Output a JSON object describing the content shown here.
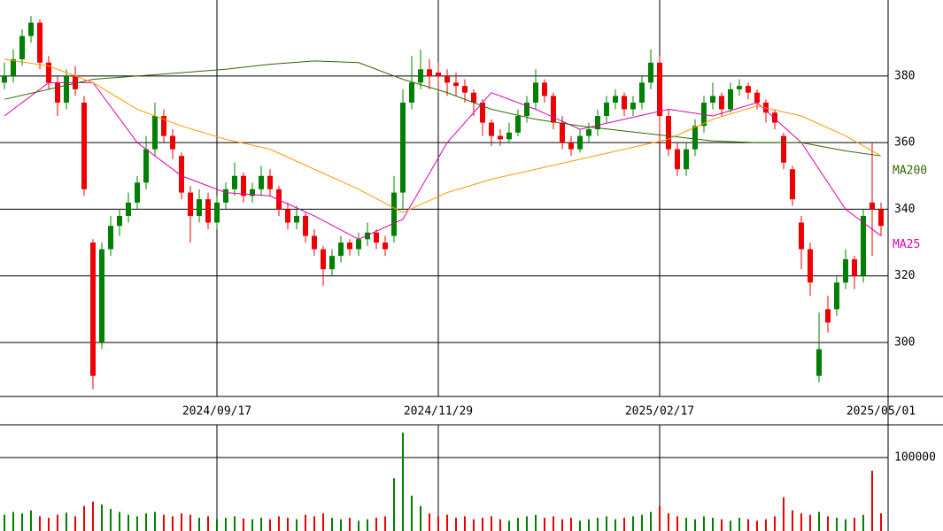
{
  "chart_data": {
    "type": "candlestick",
    "categories": [
      null,
      null,
      null,
      null,
      null,
      null,
      null,
      null,
      null,
      null,
      null,
      null,
      null,
      null,
      null,
      null,
      null,
      null,
      null,
      null,
      null,
      null,
      null,
      null,
      "2024/09/17",
      null,
      null,
      null,
      null,
      null,
      null,
      null,
      null,
      null,
      null,
      null,
      null,
      null,
      null,
      null,
      null,
      null,
      null,
      null,
      null,
      null,
      null,
      null,
      null,
      "2024/11/29",
      null,
      null,
      null,
      null,
      null,
      null,
      null,
      null,
      null,
      null,
      null,
      null,
      null,
      null,
      null,
      null,
      null,
      null,
      null,
      null,
      null,
      null,
      null,
      null,
      "2025/02/17",
      null,
      null,
      null,
      null,
      null,
      null,
      null,
      null,
      null,
      null,
      null,
      null,
      null,
      null,
      null,
      null,
      null,
      null,
      null,
      null,
      null,
      null,
      null,
      null,
      "2025/05/01"
    ],
    "ohlc": [
      [
        378,
        384,
        376,
        380
      ],
      [
        380,
        388,
        378,
        385
      ],
      [
        385,
        394,
        383,
        392
      ],
      [
        392,
        398,
        390,
        396
      ],
      [
        396,
        397,
        382,
        384
      ],
      [
        384,
        386,
        376,
        378
      ],
      [
        378,
        380,
        368,
        372
      ],
      [
        372,
        382,
        370,
        380
      ],
      [
        380,
        383,
        374,
        376
      ],
      [
        372,
        374,
        344,
        346
      ],
      [
        330,
        331,
        286,
        290
      ],
      [
        300,
        330,
        298,
        328
      ],
      [
        328,
        338,
        326,
        335
      ],
      [
        335,
        340,
        332,
        338
      ],
      [
        338,
        345,
        336,
        342
      ],
      [
        342,
        350,
        340,
        348
      ],
      [
        348,
        362,
        346,
        358
      ],
      [
        358,
        372,
        356,
        368
      ],
      [
        368,
        370,
        360,
        362
      ],
      [
        362,
        364,
        355,
        358
      ],
      [
        356,
        357,
        343,
        345
      ],
      [
        345,
        347,
        330,
        338
      ],
      [
        338,
        346,
        336,
        343
      ],
      [
        343,
        345,
        334,
        336
      ],
      [
        336,
        344,
        334,
        342
      ],
      [
        342,
        348,
        340,
        346
      ],
      [
        346,
        354,
        344,
        350
      ],
      [
        350,
        351,
        342,
        344
      ],
      [
        344,
        348,
        342,
        346
      ],
      [
        346,
        353,
        344,
        350
      ],
      [
        350,
        352,
        344,
        346
      ],
      [
        346,
        347,
        338,
        340
      ],
      [
        340,
        342,
        334,
        336
      ],
      [
        336,
        341,
        334,
        338
      ],
      [
        338,
        339,
        330,
        332
      ],
      [
        332,
        334,
        326,
        328
      ],
      [
        328,
        329,
        317,
        322
      ],
      [
        322,
        328,
        320,
        326
      ],
      [
        326,
        332,
        324,
        330
      ],
      [
        330,
        331,
        326,
        328
      ],
      [
        328,
        333,
        326,
        331
      ],
      [
        331,
        336,
        329,
        333
      ],
      [
        333,
        334,
        328,
        330
      ],
      [
        330,
        332,
        326,
        328
      ],
      [
        332,
        350,
        330,
        345
      ],
      [
        345,
        376,
        340,
        372
      ],
      [
        372,
        386,
        370,
        378
      ],
      [
        378,
        388,
        376,
        382
      ],
      [
        382,
        385,
        376,
        380
      ],
      [
        381,
        384,
        375,
        380
      ],
      [
        380,
        382,
        374,
        378
      ],
      [
        378,
        381,
        374,
        377
      ],
      [
        377,
        379,
        372,
        375
      ],
      [
        375,
        376,
        368,
        372
      ],
      [
        372,
        373,
        362,
        366
      ],
      [
        366,
        367,
        359,
        362
      ],
      [
        362,
        364,
        359,
        361
      ],
      [
        361,
        366,
        360,
        363
      ],
      [
        363,
        370,
        362,
        368
      ],
      [
        368,
        374,
        366,
        372
      ],
      [
        372,
        382,
        370,
        378
      ],
      [
        378,
        379,
        372,
        374
      ],
      [
        374,
        375,
        364,
        366
      ],
      [
        366,
        368,
        358,
        360
      ],
      [
        360,
        362,
        356,
        358
      ],
      [
        358,
        364,
        357,
        362
      ],
      [
        362,
        366,
        360,
        364
      ],
      [
        364,
        370,
        362,
        368
      ],
      [
        368,
        374,
        366,
        372
      ],
      [
        372,
        376,
        370,
        374
      ],
      [
        374,
        375,
        368,
        370
      ],
      [
        370,
        374,
        368,
        372
      ],
      [
        372,
        380,
        370,
        378
      ],
      [
        378,
        388,
        376,
        384
      ],
      [
        384,
        386,
        360,
        368
      ],
      [
        368,
        370,
        356,
        358
      ],
      [
        358,
        360,
        350,
        352
      ],
      [
        352,
        360,
        350,
        358
      ],
      [
        358,
        367,
        356,
        365
      ],
      [
        365,
        374,
        363,
        372
      ],
      [
        372,
        378,
        370,
        374
      ],
      [
        374,
        375,
        368,
        370
      ],
      [
        370,
        378,
        369,
        376
      ],
      [
        376,
        379,
        374,
        377
      ],
      [
        377,
        378,
        373,
        375
      ],
      [
        375,
        376,
        370,
        372
      ],
      [
        372,
        373,
        366,
        369
      ],
      [
        369,
        370,
        364,
        366
      ],
      [
        362,
        363,
        352,
        354
      ],
      [
        352,
        353,
        341,
        343
      ],
      [
        336,
        338,
        322,
        328
      ],
      [
        328,
        330,
        314,
        318
      ],
      [
        290,
        309,
        288,
        298
      ],
      [
        310,
        314,
        303,
        306
      ],
      [
        310,
        320,
        308,
        318
      ],
      [
        318,
        328,
        316,
        325
      ],
      [
        325,
        326,
        316,
        320
      ],
      [
        320,
        340,
        318,
        338
      ],
      [
        342,
        360,
        326,
        340
      ],
      [
        340,
        342,
        332,
        335
      ]
    ],
    "up_color": "#008000",
    "down_color": "#ee0000",
    "ylim": [
      283.8,
      402.8
    ],
    "yticks": [
      300,
      320,
      340,
      360,
      380
    ],
    "grid": true,
    "lines": [
      {
        "name": "MA25",
        "color": "#dd00aa",
        "x": [
          0,
          5,
          10,
          15,
          20,
          25,
          30,
          35,
          40,
          45,
          50,
          55,
          60,
          65,
          70,
          75,
          80,
          85,
          90,
          95,
          99
        ],
        "values": [
          368,
          378,
          378,
          360,
          350,
          345,
          344,
          338,
          331,
          337,
          360,
          375,
          370,
          364,
          367,
          370,
          368,
          372,
          360,
          340,
          332
        ]
      },
      {
        "name": "MA200",
        "color": "#336600",
        "x": [
          0,
          5,
          10,
          15,
          20,
          25,
          30,
          35,
          40,
          45,
          50,
          55,
          60,
          65,
          70,
          75,
          80,
          85,
          90,
          95,
          99
        ],
        "values": [
          373,
          376,
          379,
          380,
          381,
          382,
          383.5,
          384.5,
          384,
          379,
          375,
          370,
          367,
          365,
          363.5,
          362,
          360.5,
          360,
          360,
          357.5,
          356
        ]
      },
      {
        "color": "#ff9900",
        "x": [
          0,
          5,
          10,
          15,
          20,
          25,
          30,
          35,
          40,
          45,
          50,
          55,
          60,
          65,
          70,
          75,
          80,
          85,
          90,
          95,
          99
        ],
        "values": [
          385,
          383,
          378,
          370,
          365,
          361,
          358,
          352,
          346,
          339,
          345,
          349,
          352,
          355,
          358,
          361,
          367,
          371,
          368,
          362,
          356
        ]
      }
    ],
    "volume": {
      "values": [
        22000,
        26000,
        24000,
        28000,
        20000,
        18000,
        22000,
        25000,
        20000,
        34000,
        40000,
        36000,
        30000,
        26000,
        22000,
        20000,
        24000,
        26000,
        22000,
        20000,
        24000,
        22000,
        18000,
        20000,
        16000,
        18000,
        20000,
        17000,
        16000,
        18000,
        16000,
        20000,
        18000,
        16000,
        22000,
        20000,
        24000,
        18000,
        16000,
        18000,
        14000,
        16000,
        18000,
        20000,
        72000,
        134000,
        48000,
        34000,
        24000,
        20000,
        22000,
        18000,
        20000,
        16000,
        18000,
        20000,
        16000,
        14000,
        18000,
        20000,
        22000,
        18000,
        20000,
        16000,
        18000,
        14000,
        16000,
        18000,
        20000,
        16000,
        18000,
        20000,
        22000,
        26000,
        34000,
        24000,
        20000,
        18000,
        16000,
        20000,
        18000,
        16000,
        14000,
        18000,
        16000,
        14000,
        16000,
        20000,
        46000,
        28000,
        24000,
        22000,
        26000,
        20000,
        18000,
        16000,
        18000,
        22000,
        82000,
        24000
      ],
      "ylim": [
        0,
        144600
      ],
      "yticks": [
        100000
      ]
    }
  }
}
